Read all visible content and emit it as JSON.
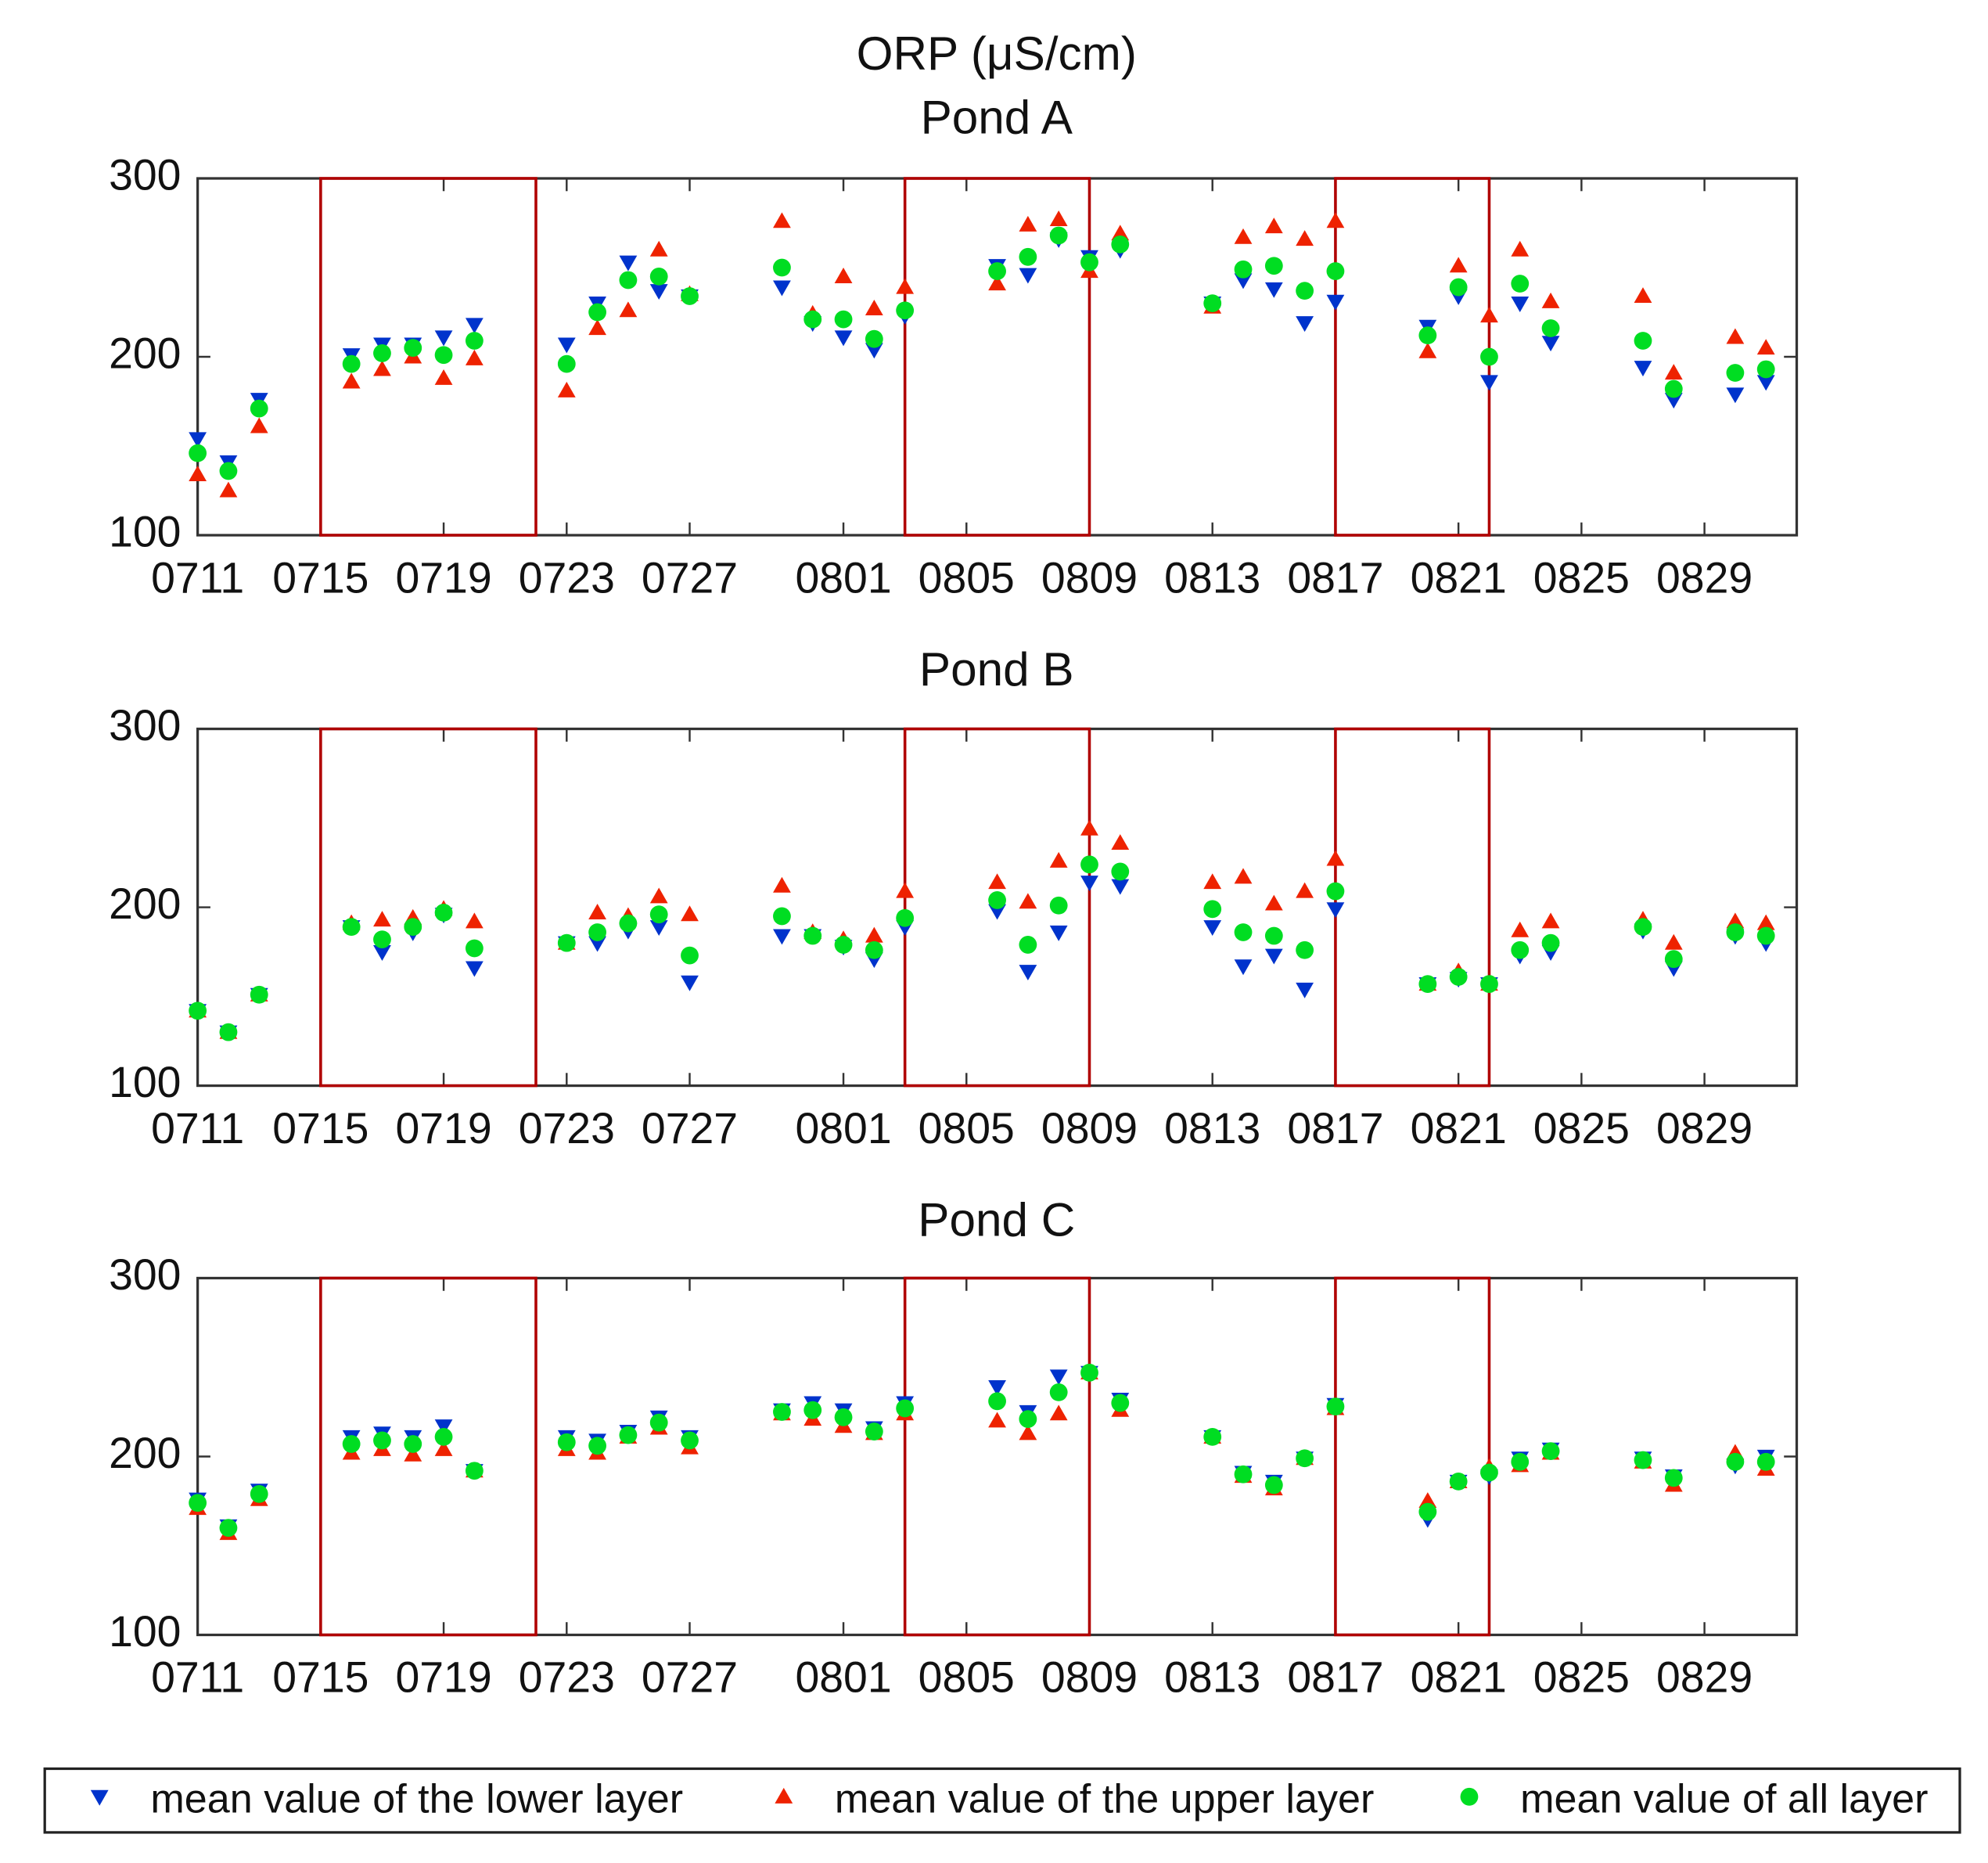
{
  "title": "ORP (μS/cm)",
  "legend": "bottom",
  "chart_data": [
    {
      "type": "scatter",
      "title": "Pond A",
      "x": [
        "0711",
        "0712",
        "0713",
        "0716",
        "0717",
        "0718",
        "0719",
        "0720",
        "0723",
        "0724",
        "0725",
        "0726",
        "0727",
        "0730",
        "0731",
        "0801",
        "0802",
        "0803",
        "0806",
        "0807",
        "0808",
        "0809",
        "0810",
        "0813",
        "0814",
        "0815",
        "0816",
        "0817",
        "0820",
        "0821",
        "0822",
        "0823",
        "0824",
        "0827",
        "0828",
        "0830",
        "0831"
      ],
      "xlim": [
        "0711",
        "0901"
      ],
      "xticks": [
        "0711",
        "0715",
        "0719",
        "0723",
        "0727",
        "0801",
        "0805",
        "0809",
        "0813",
        "0817",
        "0821",
        "0825",
        "0829"
      ],
      "ylim": [
        100,
        300
      ],
      "yticks": [
        100,
        200,
        300
      ],
      "grid": false,
      "highlight_ranges": [
        [
          "0715",
          "0722"
        ],
        [
          "0803",
          "0809"
        ],
        [
          "0817",
          "0822"
        ]
      ],
      "highlight_color": "#b00000",
      "series": [
        {
          "name": "mean value of the lower layer",
          "color": "#0033cc",
          "marker": "triangle-down",
          "values": [
            154,
            141,
            176,
            201,
            207,
            207,
            211,
            218,
            207,
            230,
            253,
            237,
            234,
            239,
            219,
            211,
            204,
            223,
            251,
            246,
            266,
            256,
            260,
            230,
            243,
            238,
            219,
            231,
            217,
            234,
            186,
            230,
            208,
            194,
            176,
            179,
            186
          ]
        },
        {
          "name": "mean value of the upper layer",
          "color": "#ee2200",
          "marker": "triangle-up",
          "values": [
            134,
            125,
            161,
            186,
            193,
            200,
            188,
            199,
            181,
            216,
            226,
            260,
            235,
            276,
            224,
            245,
            227,
            239,
            241,
            274,
            277,
            248,
            269,
            228,
            267,
            273,
            266,
            276,
            203,
            251,
            223,
            260,
            231,
            234,
            191,
            211,
            205
          ]
        },
        {
          "name": "mean value of all layer",
          "color": "#00dd22",
          "marker": "circle",
          "values": [
            146,
            136,
            171,
            196,
            202,
            205,
            201,
            209,
            196,
            225,
            243,
            245,
            234,
            250,
            221,
            221,
            210,
            226,
            248,
            256,
            268,
            253,
            263,
            230,
            249,
            251,
            237,
            248,
            212,
            239,
            200,
            241,
            216,
            209,
            182,
            191,
            193
          ]
        }
      ]
    },
    {
      "type": "scatter",
      "title": "Pond B",
      "x": [
        "0711",
        "0712",
        "0713",
        "0716",
        "0717",
        "0718",
        "0719",
        "0720",
        "0723",
        "0724",
        "0725",
        "0726",
        "0727",
        "0730",
        "0731",
        "0801",
        "0802",
        "0803",
        "0806",
        "0807",
        "0808",
        "0809",
        "0810",
        "0813",
        "0814",
        "0815",
        "0816",
        "0817",
        "0820",
        "0821",
        "0822",
        "0823",
        "0824",
        "0827",
        "0828",
        "0830",
        "0831"
      ],
      "xlim": [
        "0711",
        "0901"
      ],
      "xticks": [
        "0711",
        "0715",
        "0719",
        "0723",
        "0727",
        "0801",
        "0805",
        "0809",
        "0813",
        "0817",
        "0821",
        "0825",
        "0829"
      ],
      "ylim": [
        100,
        300
      ],
      "yticks": [
        100,
        200,
        300
      ],
      "grid": false,
      "highlight_ranges": [
        [
          "0715",
          "0722"
        ],
        [
          "0803",
          "0809"
        ],
        [
          "0817",
          "0822"
        ]
      ],
      "highlight_color": "#b00000",
      "series": [
        {
          "color": "#0033cc",
          "marker": "triangle-down",
          "values": [
            142,
            130,
            151,
            189,
            175,
            186,
            196,
            166,
            180,
            180,
            187,
            189,
            158,
            184,
            184,
            178,
            171,
            189,
            198,
            164,
            186,
            214,
            212,
            189,
            167,
            173,
            154,
            199,
            157,
            160,
            157,
            173,
            175,
            187,
            166,
            184,
            180
          ]
        },
        {
          "color": "#ee2200",
          "marker": "triangle-up",
          "values": [
            142,
            130,
            151,
            191,
            193,
            194,
            199,
            192,
            180,
            197,
            195,
            206,
            196,
            212,
            186,
            182,
            184,
            209,
            214,
            203,
            226,
            244,
            236,
            214,
            217,
            202,
            209,
            227,
            157,
            164,
            157,
            187,
            192,
            193,
            180,
            192,
            191
          ]
        },
        {
          "color": "#00dd22",
          "marker": "circle",
          "values": [
            142,
            130,
            151,
            189,
            182,
            189,
            197,
            177,
            180,
            186,
            191,
            196,
            173,
            195,
            184,
            179,
            176,
            194,
            204,
            179,
            201,
            224,
            220,
            199,
            186,
            184,
            176,
            209,
            157,
            161,
            157,
            176,
            180,
            189,
            171,
            186,
            184
          ]
        }
      ]
    },
    {
      "type": "scatter",
      "title": "Pond C",
      "x": [
        "0711",
        "0712",
        "0713",
        "0716",
        "0717",
        "0718",
        "0719",
        "0720",
        "0723",
        "0724",
        "0725",
        "0726",
        "0727",
        "0730",
        "0731",
        "0801",
        "0802",
        "0803",
        "0806",
        "0807",
        "0808",
        "0809",
        "0810",
        "0813",
        "0814",
        "0815",
        "0816",
        "0817",
        "0820",
        "0821",
        "0822",
        "0823",
        "0824",
        "0827",
        "0828",
        "0830",
        "0831"
      ],
      "xlim": [
        "0711",
        "0901"
      ],
      "xticks": [
        "0711",
        "0715",
        "0719",
        "0723",
        "0727",
        "0801",
        "0805",
        "0809",
        "0813",
        "0817",
        "0821",
        "0825",
        "0829"
      ],
      "ylim": [
        100,
        300
      ],
      "yticks": [
        100,
        200,
        300
      ],
      "grid": false,
      "highlight_ranges": [
        [
          "0715",
          "0722"
        ],
        [
          "0803",
          "0809"
        ],
        [
          "0817",
          "0822"
        ]
      ],
      "highlight_color": "#b00000",
      "series": [
        {
          "color": "#0033cc",
          "marker": "triangle-down",
          "values": [
            176,
            161,
            181,
            211,
            213,
            211,
            217,
            192,
            211,
            209,
            214,
            222,
            211,
            226,
            230,
            226,
            216,
            230,
            239,
            225,
            245,
            247,
            232,
            211,
            191,
            186,
            199,
            229,
            165,
            186,
            189,
            199,
            204,
            199,
            189,
            195,
            200
          ]
        },
        {
          "color": "#ee2200",
          "marker": "triangle-up",
          "values": [
            171,
            157,
            176,
            202,
            204,
            201,
            204,
            192,
            204,
            202,
            211,
            216,
            205,
            224,
            221,
            217,
            213,
            224,
            220,
            213,
            224,
            247,
            226,
            211,
            189,
            182,
            199,
            227,
            175,
            186,
            194,
            195,
            202,
            197,
            184,
            202,
            193
          ]
        },
        {
          "color": "#00dd22",
          "marker": "circle",
          "values": [
            174,
            160,
            179,
            207,
            209,
            207,
            211,
            192,
            208,
            206,
            212,
            219,
            209,
            225,
            226,
            222,
            214,
            227,
            231,
            221,
            236,
            247,
            230,
            211,
            190,
            184,
            199,
            228,
            169,
            186,
            191,
            197,
            203,
            198,
            188,
            197,
            197
          ]
        }
      ]
    }
  ]
}
